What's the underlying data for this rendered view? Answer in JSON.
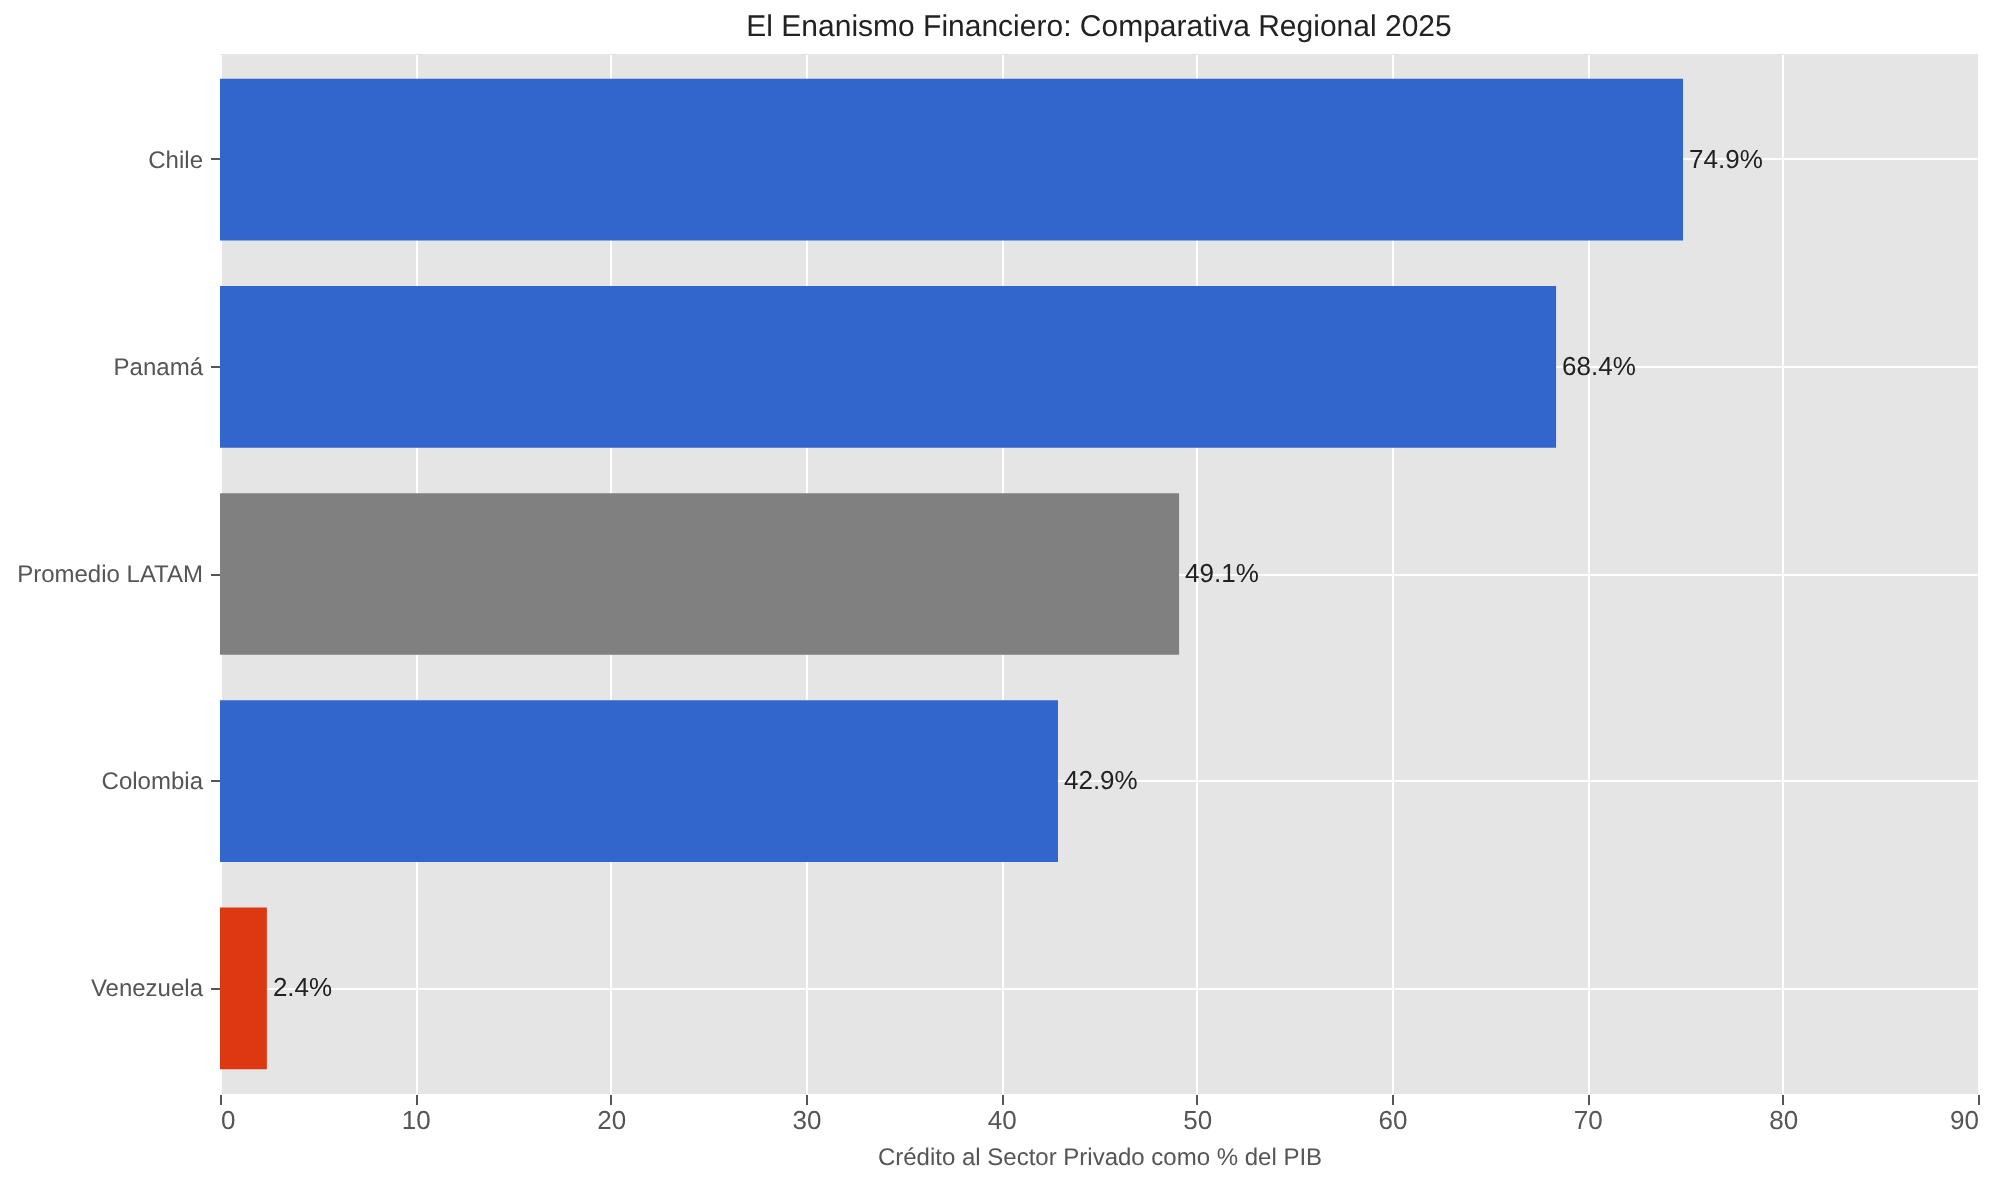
{
  "chart_data": {
    "type": "bar",
    "orientation": "horizontal",
    "title": "El Enanismo Financiero: Comparativa Regional 2025",
    "xlabel": "Crédito al Sector Privado como % del PIB",
    "categories": [
      "Chile",
      "Panamá",
      "Promedio LATAM",
      "Colombia",
      "Venezuela"
    ],
    "values": [
      74.9,
      68.4,
      49.1,
      42.9,
      2.4
    ],
    "colors": [
      "#3366cc",
      "#3366cc",
      "#808080",
      "#3366cc",
      "#dc3912"
    ],
    "value_labels": [
      "74.9%",
      "68.4%",
      "49.1%",
      "42.9%",
      "2.4%"
    ],
    "xlim": [
      0,
      90
    ],
    "xticks": [
      0,
      10,
      20,
      30,
      40,
      50,
      60,
      70,
      80,
      90
    ],
    "grid": true
  }
}
